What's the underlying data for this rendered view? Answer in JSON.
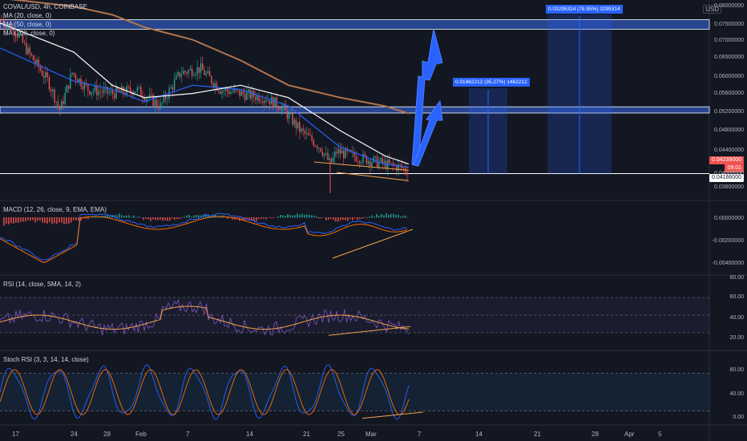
{
  "header": {
    "ticker": "COVAL/USD, 4h, COINBASE",
    "currency": "USD",
    "ma_lines": [
      {
        "label": "MA (20, close, 0)",
        "color": "#2962ff"
      },
      {
        "label": "MA (50, close, 0)",
        "color": "#ffffff"
      },
      {
        "label": "MA (200, close, 0)",
        "color": "#b2754e"
      }
    ]
  },
  "price_axis": {
    "ticks": [
      "0.08000000",
      "0.07500000",
      "0.07000000",
      "0.06500000",
      "0.06000000",
      "0.05600000",
      "0.05200000",
      "0.04800000",
      "0.04400000",
      "0.04000000",
      "0.03800000"
    ],
    "current_price": "0.04239000",
    "countdown": "09:01",
    "support_price": "0.04166000"
  },
  "measurements": [
    {
      "label": "0.03295314 (78.95%) 3295314"
    },
    {
      "label": "0.01462212 (35.27%) 1462212"
    }
  ],
  "indicators": {
    "macd": {
      "title": "MACD (12, 26, close, 9, EMA, EMA)",
      "ticks": [
        "0.00000000",
        "-0.00200000",
        "-0.00400000"
      ]
    },
    "rsi": {
      "title": "RSI (14, close, SMA, 14, 2)",
      "ticks": [
        "80.00",
        "60.00",
        "40.00",
        "20.00"
      ]
    },
    "stoch": {
      "title": "Stoch RSI (3, 3, 14, 14, close)",
      "ticks": [
        "80.00",
        "40.00",
        "0.00"
      ]
    }
  },
  "time_axis": [
    "17",
    "24",
    "28",
    "Feb",
    "7",
    "14",
    "21",
    "25",
    "Mar",
    "7",
    "14",
    "21",
    "28",
    "Apr",
    "5"
  ],
  "colors": {
    "bg": "#131722",
    "up": "#26a69a",
    "down": "#ef5350",
    "zone": "#2c4ea3",
    "blue": "#2962ff",
    "orange": "#f4a14a",
    "purple": "#7e57c2"
  },
  "chart_data": {
    "type": "line",
    "title": "COVAL/USD, 4h, COINBASE",
    "xlabel": "",
    "ylabel": "",
    "ylim": [
      0.036,
      0.082
    ],
    "resistance_zones": [
      [
        0.0765,
        0.0788
      ],
      [
        0.0563,
        0.0578
      ]
    ],
    "support_line": 0.0417,
    "x": [
      "Jan 17",
      "Jan 24",
      "Jan 28",
      "Feb 1",
      "Feb 7",
      "Feb 14",
      "Feb 21",
      "Feb 25",
      "Mar 1",
      "Mar 3"
    ],
    "series": [
      {
        "name": "MA (20, close, 0)",
        "values": [
          0.072,
          0.064,
          0.062,
          0.059,
          0.063,
          0.062,
          0.058,
          0.048,
          0.044,
          0.0432
        ]
      },
      {
        "name": "MA (50, close, 0)",
        "values": [
          0.078,
          0.071,
          0.063,
          0.06,
          0.061,
          0.063,
          0.06,
          0.052,
          0.046,
          0.044
        ]
      },
      {
        "name": "MA (200, close, 0)",
        "values": [
          0.084,
          0.082,
          0.08,
          0.077,
          0.074,
          0.069,
          0.063,
          0.06,
          0.058,
          0.0562
        ]
      }
    ],
    "targets": [
      0.075,
      0.0563
    ]
  }
}
